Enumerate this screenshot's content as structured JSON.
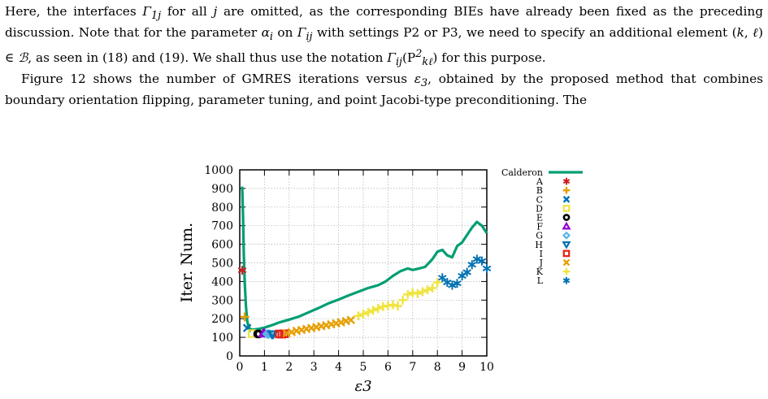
{
  "paragraphs": [
    {
      "segments": [
        {
          "t": "Here, the interfaces "
        },
        {
          "t": "Γ",
          "m": 1
        },
        {
          "t": "1j",
          "sub": 1
        },
        {
          "t": " for all "
        },
        {
          "t": "j",
          "m": 1
        },
        {
          "t": " are omitted, as the corresponding BIEs have already been fixed as the preceding discussion. Note that for the parameter "
        },
        {
          "t": "α",
          "m": 1
        },
        {
          "t": "i",
          "sub": 1
        },
        {
          "t": " on "
        },
        {
          "t": "Γ",
          "m": 1
        },
        {
          "t": "ij",
          "sub": 1
        },
        {
          "t": " with settings P2 or P3, we need to specify an additional element ("
        },
        {
          "t": "k",
          "m": 1
        },
        {
          "t": ", "
        },
        {
          "t": "ℓ",
          "m": 1
        },
        {
          "t": ") ∈ "
        },
        {
          "t": "ℬ",
          "m": 1
        },
        {
          "t": ", as seen in (18) and (19). We shall thus use the notation "
        },
        {
          "t": "Γ",
          "m": 1
        },
        {
          "t": "ij",
          "sub": 1
        },
        {
          "t": "(P"
        },
        {
          "t": "2",
          "sup": 1
        },
        {
          "t": "kℓ",
          "sub": 1
        },
        {
          "t": ") for this purpose."
        }
      ]
    },
    {
      "indent": true,
      "segments": [
        {
          "t": "Figure 12 shows the number of GMRES iterations versus "
        },
        {
          "t": "ε",
          "m": 1
        },
        {
          "t": "3",
          "sub": 1
        },
        {
          "t": ", obtained by the proposed method that combines boundary orientation flipping, parameter tuning, and point Jacobi-type preconditioning. The"
        }
      ]
    }
  ],
  "chart_data": {
    "type": "line",
    "xlabel": "ε3",
    "ylabel": "Iter. Num.",
    "xlim": [
      0,
      10
    ],
    "ylim": [
      0,
      1000
    ],
    "xticks": [
      "0",
      "1",
      "2",
      "3",
      "4",
      "5",
      "6",
      "7",
      "8",
      "9",
      "10"
    ],
    "yticks": [
      "0",
      "100",
      "200",
      "300",
      "400",
      "500",
      "600",
      "700",
      "800",
      "900",
      "1000"
    ],
    "grid": true,
    "legend_placement": "outside-right",
    "series": [
      {
        "name": "Calderon",
        "color": "#009e73",
        "kind": "line",
        "x": [
          0.1,
          0.13,
          0.16,
          0.2,
          0.25,
          0.3,
          0.35,
          0.4,
          0.5,
          0.6,
          0.8,
          1.0,
          1.3,
          1.6,
          2.0,
          2.4,
          2.8,
          3.2,
          3.6,
          4.0,
          4.4,
          4.8,
          5.2,
          5.6,
          5.9,
          6.2,
          6.5,
          6.8,
          7.0,
          7.2,
          7.5,
          7.8,
          8.0,
          8.2,
          8.4,
          8.6,
          8.8,
          9.0,
          9.2,
          9.4,
          9.6,
          9.8,
          10.0
        ],
        "y": [
          910,
          760,
          560,
          400,
          270,
          190,
          160,
          148,
          140,
          142,
          146,
          152,
          165,
          180,
          195,
          212,
          235,
          258,
          283,
          303,
          325,
          345,
          365,
          380,
          400,
          430,
          455,
          470,
          462,
          468,
          478,
          520,
          560,
          570,
          540,
          530,
          590,
          610,
          650,
          690,
          720,
          700,
          660
        ]
      },
      {
        "name": "A",
        "color": "#cc1f1f",
        "marker": "star",
        "x": [
          0.1
        ],
        "y": [
          460
        ]
      },
      {
        "name": "B",
        "color": "#e69f00",
        "marker": "plus",
        "x": [
          0.2
        ],
        "y": [
          210
        ]
      },
      {
        "name": "C",
        "color": "#0072b2",
        "marker": "x",
        "x": [
          0.3
        ],
        "y": [
          150
        ]
      },
      {
        "name": "D",
        "color": "#f0e442",
        "marker": "square",
        "x": [
          0.5
        ],
        "y": [
          120
        ]
      },
      {
        "name": "E",
        "color": "#000000",
        "marker": "circle",
        "x": [
          0.72,
          0.78
        ],
        "y": [
          118,
          118
        ]
      },
      {
        "name": "F",
        "color": "#9400d3",
        "marker": "triangle",
        "x": [
          0.95,
          1.0
        ],
        "y": [
          120,
          120
        ]
      },
      {
        "name": "G",
        "color": "#56b4e9",
        "marker": "diamond",
        "x": [
          1.1,
          1.15,
          1.2
        ],
        "y": [
          118,
          117,
          118
        ]
      },
      {
        "name": "H",
        "color": "#0072b2",
        "marker": "triangle-down",
        "x": [
          1.3,
          1.35
        ],
        "y": [
          117,
          117
        ]
      },
      {
        "name": "I",
        "color": "#e51e10",
        "marker": "square",
        "x": [
          1.6,
          1.7,
          1.8
        ],
        "y": [
          118,
          117,
          119
        ]
      },
      {
        "name": "J",
        "color": "#e69f00",
        "marker": "x",
        "x": [
          1.9,
          2.1,
          2.3,
          2.5,
          2.7,
          2.9,
          3.1,
          3.3,
          3.5,
          3.7,
          3.9,
          4.1,
          4.3,
          4.5
        ],
        "y": [
          122,
          128,
          135,
          140,
          145,
          150,
          155,
          160,
          165,
          170,
          175,
          180,
          187,
          193
        ]
      },
      {
        "name": "K",
        "color": "#f0e442",
        "marker": "plus",
        "x": [
          4.8,
          5.0,
          5.2,
          5.4,
          5.6,
          5.8,
          6.0,
          6.2,
          6.4,
          6.6,
          6.8,
          7.0,
          7.2,
          7.4,
          7.6,
          7.8,
          8.0
        ],
        "y": [
          215,
          225,
          235,
          245,
          255,
          265,
          270,
          275,
          268,
          300,
          330,
          340,
          335,
          345,
          355,
          365,
          395
        ]
      },
      {
        "name": "L",
        "color": "#0072b2",
        "marker": "star",
        "x": [
          8.2,
          8.4,
          8.6,
          8.8,
          9.0,
          9.2,
          9.4,
          9.6,
          9.8,
          10.0
        ],
        "y": [
          420,
          395,
          380,
          390,
          430,
          450,
          490,
          520,
          510,
          470
        ]
      }
    ]
  }
}
